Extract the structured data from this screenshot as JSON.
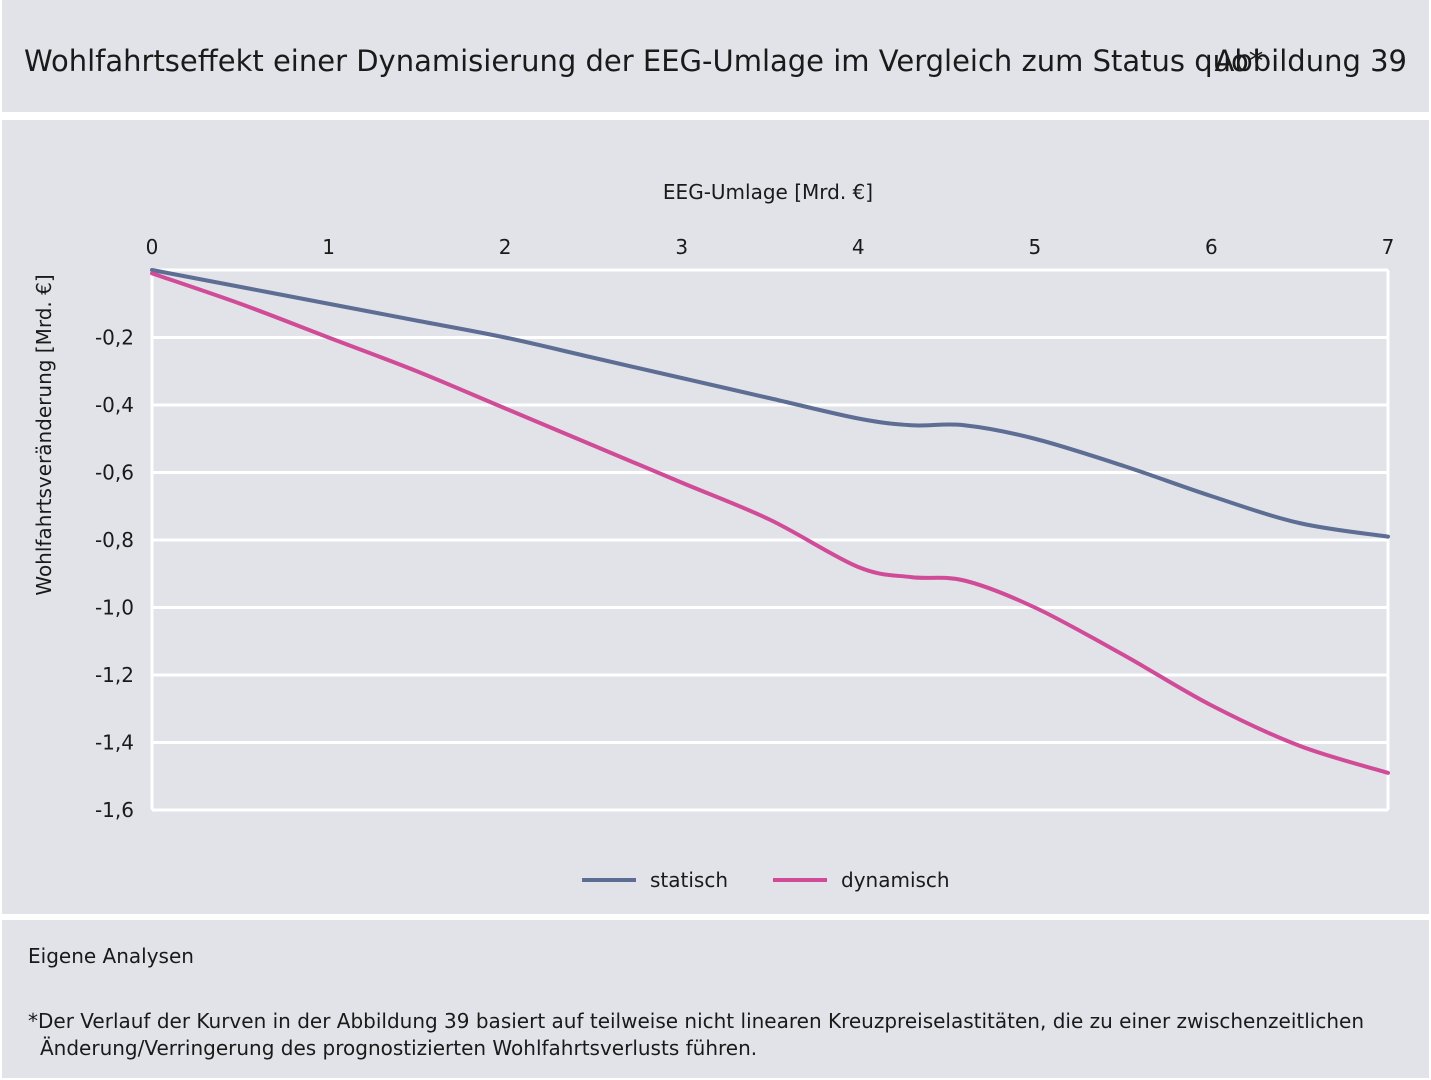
{
  "header": {
    "title": "Wohlfahrtseffekt einer Dynamisierung der EEG-Umlage im Vergleich zum Status quo*",
    "figure_label": "Abbildung 39"
  },
  "chart_data": {
    "type": "line",
    "xlabel": "EEG-Umlage [Mrd. €]",
    "ylabel": "Wohlfahrtsveränderung [Mrd. €]",
    "xlim": [
      0,
      7
    ],
    "ylim": [
      -1.6,
      0
    ],
    "x_ticks": [
      0,
      1,
      2,
      3,
      4,
      5,
      6,
      7
    ],
    "x_tick_labels": [
      "0",
      "1",
      "2",
      "3",
      "4",
      "5",
      "6",
      "7"
    ],
    "y_ticks": [
      -0.2,
      -0.4,
      -0.6,
      -0.8,
      -1.0,
      -1.2,
      -1.4,
      -1.6
    ],
    "y_tick_labels": [
      "-0,2",
      "-0,4",
      "-0,6",
      "-0,8",
      "-1,0",
      "-1,2",
      "-1,4",
      "-1,6"
    ],
    "x_axis_position": "top",
    "grid": true,
    "legend_position": "bottom-center",
    "series": [
      {
        "name": "statisch",
        "color": "#5d6d93",
        "x": [
          0,
          0.5,
          1,
          1.5,
          2,
          2.5,
          3,
          3.5,
          4,
          4.3,
          4.6,
          5,
          5.5,
          6,
          6.5,
          7
        ],
        "y": [
          0,
          -0.05,
          -0.1,
          -0.15,
          -0.2,
          -0.26,
          -0.32,
          -0.38,
          -0.44,
          -0.46,
          -0.46,
          -0.5,
          -0.58,
          -0.67,
          -0.75,
          -0.79
        ]
      },
      {
        "name": "dynamisch",
        "color": "#d04c98",
        "x": [
          0,
          0.5,
          1,
          1.5,
          2,
          2.5,
          3,
          3.5,
          4,
          4.3,
          4.6,
          5,
          5.5,
          6,
          6.5,
          7
        ],
        "y": [
          -0.01,
          -0.1,
          -0.2,
          -0.3,
          -0.41,
          -0.52,
          -0.63,
          -0.74,
          -0.88,
          -0.91,
          -0.92,
          -1.0,
          -1.14,
          -1.29,
          -1.41,
          -1.49
        ]
      }
    ]
  },
  "footer": {
    "source": "Eigene Analysen",
    "footnote_line1": "*Der Verlauf der Kurven in der Abbildung 39 basiert auf teilweise nicht linearen Kreuzpreiselastitäten, die zu einer zwischenzeitlichen",
    "footnote_line2": "Änderung/Verringerung des prognostizierten Wohlfahrtsverlusts führen."
  }
}
